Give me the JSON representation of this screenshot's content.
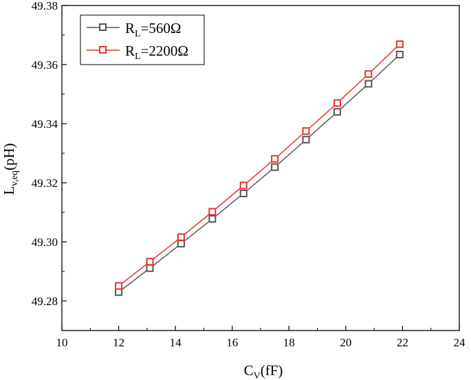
{
  "chart_data": {
    "type": "line",
    "xlabel": {
      "main": "C",
      "sub": "V",
      "rest": "(fF)"
    },
    "ylabel": {
      "main": "L",
      "sub": "v,eq",
      "rest": "(pH)"
    },
    "xlim": [
      10,
      24
    ],
    "ylim": [
      49.27,
      49.38
    ],
    "x_ticks": [
      "10",
      "12",
      "14",
      "16",
      "18",
      "20",
      "22",
      "24"
    ],
    "y_ticks": [
      "49.28",
      "49.30",
      "49.32",
      "49.34",
      "49.36",
      "49.38"
    ],
    "grid": false,
    "legend_position": "top-left",
    "marker": "hollow-square",
    "series": [
      {
        "name": "RL=560Ω",
        "label": {
          "main": "R",
          "sub": "L",
          "rest": "=560Ω"
        },
        "color": "#555555",
        "x": [
          12.0,
          13.1,
          14.2,
          15.3,
          16.4,
          17.5,
          18.6,
          19.7,
          20.8,
          21.9
        ],
        "y": [
          49.283,
          49.2911,
          49.2994,
          49.3078,
          49.3164,
          49.3253,
          49.3346,
          49.344,
          49.3535,
          49.3634
        ]
      },
      {
        "name": "RL=2200Ω",
        "label": {
          "main": "R",
          "sub": "L",
          "rest": "=2200Ω"
        },
        "color": "#e8312f",
        "x": [
          12.0,
          13.1,
          14.2,
          15.3,
          16.4,
          17.5,
          18.6,
          19.7,
          20.8,
          21.9
        ],
        "y": [
          49.2851,
          49.2933,
          49.3016,
          49.3102,
          49.3191,
          49.3281,
          49.3375,
          49.347,
          49.3568,
          49.3669
        ]
      }
    ]
  }
}
